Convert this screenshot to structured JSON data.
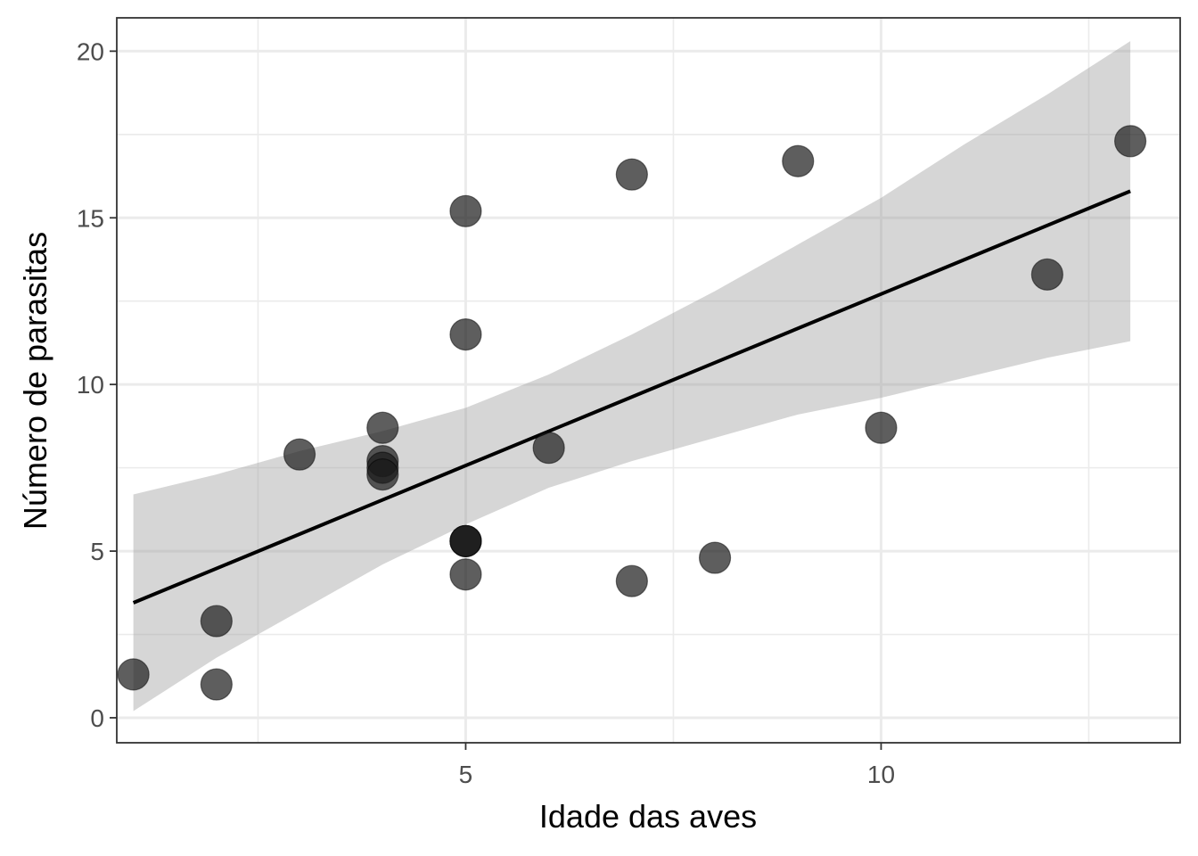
{
  "chart_data": {
    "type": "scatter",
    "title": "",
    "xlabel": "Idade das aves",
    "ylabel": "Número de parasitas",
    "xlim": [
      0.8,
      13.6
    ],
    "ylim": [
      -0.75,
      21.0
    ],
    "x_ticks": [
      5,
      10
    ],
    "x_tick_labels": [
      "5",
      "10"
    ],
    "x_minor_ticks": [
      2.5,
      7.5,
      12.5
    ],
    "y_ticks": [
      0,
      5,
      10,
      15,
      20
    ],
    "y_tick_labels": [
      "0",
      "5",
      "10",
      "15",
      "20"
    ],
    "y_minor_ticks": [
      2.5,
      7.5,
      12.5,
      17.5
    ],
    "grid": true,
    "theme": "bw",
    "points": [
      {
        "x": 1,
        "y": 1.3
      },
      {
        "x": 2,
        "y": 2.9
      },
      {
        "x": 2,
        "y": 1.0
      },
      {
        "x": 3,
        "y": 7.9
      },
      {
        "x": 4,
        "y": 8.7
      },
      {
        "x": 4,
        "y": 7.7
      },
      {
        "x": 4,
        "y": 7.5
      },
      {
        "x": 4,
        "y": 7.3
      },
      {
        "x": 5,
        "y": 15.2
      },
      {
        "x": 5,
        "y": 11.5
      },
      {
        "x": 5,
        "y": 5.3
      },
      {
        "x": 5,
        "y": 5.3
      },
      {
        "x": 5,
        "y": 5.3
      },
      {
        "x": 5,
        "y": 4.3
      },
      {
        "x": 6,
        "y": 8.1
      },
      {
        "x": 7,
        "y": 16.3
      },
      {
        "x": 7,
        "y": 4.1
      },
      {
        "x": 8,
        "y": 4.8
      },
      {
        "x": 9,
        "y": 16.7
      },
      {
        "x": 10,
        "y": 8.7
      },
      {
        "x": 12,
        "y": 13.3
      },
      {
        "x": 13,
        "y": 17.3
      }
    ],
    "point_color": "#1a1a1a",
    "point_opacity": 0.7,
    "fit": {
      "method": "lm",
      "line_color": "#000000",
      "ribbon_color": "#999999",
      "ribbon_opacity": 0.4,
      "line": [
        {
          "x": 1,
          "y": 3.45
        },
        {
          "x": 13,
          "y": 15.8
        }
      ],
      "ribbon": [
        {
          "x": 1,
          "lower": 0.2,
          "upper": 6.7
        },
        {
          "x": 2,
          "lower": 1.8,
          "upper": 7.3
        },
        {
          "x": 3,
          "lower": 3.2,
          "upper": 8.0
        },
        {
          "x": 4,
          "lower": 4.6,
          "upper": 8.6
        },
        {
          "x": 5,
          "lower": 5.8,
          "upper": 9.3
        },
        {
          "x": 6,
          "lower": 6.9,
          "upper": 10.3
        },
        {
          "x": 7,
          "lower": 7.7,
          "upper": 11.5
        },
        {
          "x": 8,
          "lower": 8.4,
          "upper": 12.8
        },
        {
          "x": 9,
          "lower": 9.1,
          "upper": 14.2
        },
        {
          "x": 10,
          "lower": 9.6,
          "upper": 15.6
        },
        {
          "x": 11,
          "lower": 10.2,
          "upper": 17.2
        },
        {
          "x": 12,
          "lower": 10.8,
          "upper": 18.7
        },
        {
          "x": 13,
          "lower": 11.3,
          "upper": 20.3
        }
      ]
    }
  }
}
